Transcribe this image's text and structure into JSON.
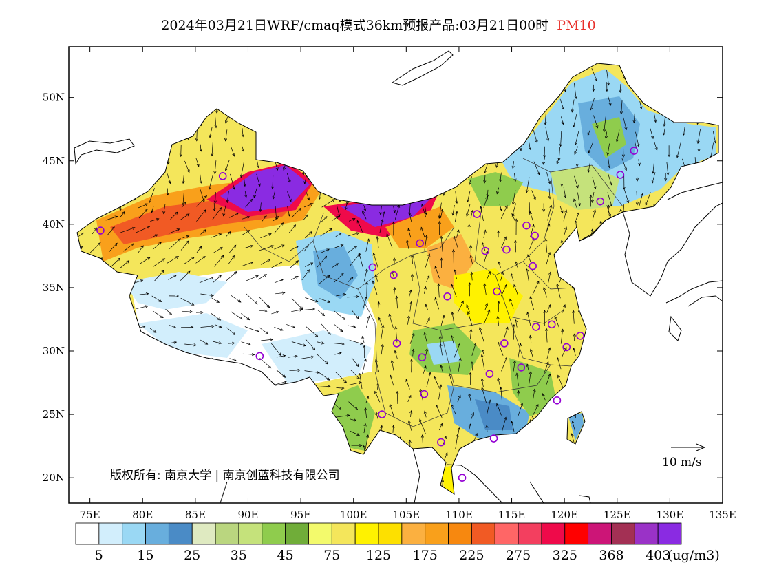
{
  "title": {
    "main": "2024年03月21日WRF/cmaq模式36km预报产品:03月21日00时",
    "pollutant": "PM10"
  },
  "axes": {
    "lat_labels": [
      "50N",
      "45N",
      "40N",
      "35N",
      "30N",
      "25N",
      "20N"
    ],
    "lat_values": [
      50,
      45,
      40,
      35,
      30,
      25,
      20
    ],
    "lon_labels": [
      "75E",
      "80E",
      "85E",
      "90E",
      "95E",
      "100E",
      "105E",
      "110E",
      "115E",
      "120E",
      "125E",
      "130E",
      "135E"
    ],
    "lon_values": [
      75,
      80,
      85,
      90,
      95,
      100,
      105,
      110,
      115,
      120,
      125,
      130,
      135
    ],
    "lon_range": [
      73,
      135
    ],
    "lat_range": [
      18,
      54
    ]
  },
  "copyright": "版权所有: 南京大学 | 南京创蓝科技有限公司",
  "wind_scale": {
    "label": "10 m/s"
  },
  "colorbar": {
    "colors": [
      "#ffffff",
      "#d2eefc",
      "#9ad8f4",
      "#68aedd",
      "#4a8bc6",
      "#dfeac1",
      "#bad67f",
      "#c5e27b",
      "#8fcc4d",
      "#70ad39",
      "#f3fa6c",
      "#f4e65b",
      "#fff200",
      "#fde000",
      "#fbb040",
      "#f9a01b",
      "#f7880f",
      "#f15a24",
      "#ff6666",
      "#f33f5f",
      "#ef0a4a",
      "#ff0000",
      "#cc1577",
      "#a33054",
      "#9a32c7",
      "#8a2be2"
    ],
    "labels": [
      "5",
      "15",
      "25",
      "35",
      "45",
      "75",
      "125",
      "175",
      "225",
      "275",
      "325",
      "368",
      "403"
    ],
    "unit": "(ug/m3)"
  },
  "legend_colors": {
    "blue": "#68aedd",
    "green": "#8fcc4d",
    "yellow": "#fff200",
    "orange": "#f9a01b",
    "red": "#ef0a4a",
    "purple": "#8a2be2",
    "station_marker": "#9400d3"
  },
  "stations": [
    {
      "lon": 76.0,
      "lat": 39.5
    },
    {
      "lon": 87.6,
      "lat": 43.8
    },
    {
      "lon": 91.1,
      "lat": 29.6
    },
    {
      "lon": 101.8,
      "lat": 36.6
    },
    {
      "lon": 103.8,
      "lat": 36.0
    },
    {
      "lon": 106.3,
      "lat": 38.5
    },
    {
      "lon": 111.7,
      "lat": 40.8
    },
    {
      "lon": 112.5,
      "lat": 37.9
    },
    {
      "lon": 114.5,
      "lat": 38.0
    },
    {
      "lon": 116.4,
      "lat": 39.9
    },
    {
      "lon": 117.2,
      "lat": 39.1
    },
    {
      "lon": 117.0,
      "lat": 36.7
    },
    {
      "lon": 113.6,
      "lat": 34.7
    },
    {
      "lon": 108.9,
      "lat": 34.3
    },
    {
      "lon": 104.1,
      "lat": 30.6
    },
    {
      "lon": 106.5,
      "lat": 29.5
    },
    {
      "lon": 106.7,
      "lat": 26.6
    },
    {
      "lon": 102.7,
      "lat": 25.0
    },
    {
      "lon": 108.3,
      "lat": 22.8
    },
    {
      "lon": 113.3,
      "lat": 23.1
    },
    {
      "lon": 110.3,
      "lat": 20.0
    },
    {
      "lon": 112.9,
      "lat": 28.2
    },
    {
      "lon": 115.9,
      "lat": 28.7
    },
    {
      "lon": 114.3,
      "lat": 30.6
    },
    {
      "lon": 117.3,
      "lat": 31.9
    },
    {
      "lon": 118.8,
      "lat": 32.1
    },
    {
      "lon": 120.2,
      "lat": 30.3
    },
    {
      "lon": 121.5,
      "lat": 31.2
    },
    {
      "lon": 119.3,
      "lat": 26.1
    },
    {
      "lon": 123.4,
      "lat": 41.8
    },
    {
      "lon": 125.3,
      "lat": 43.9
    },
    {
      "lon": 126.6,
      "lat": 45.8
    }
  ]
}
